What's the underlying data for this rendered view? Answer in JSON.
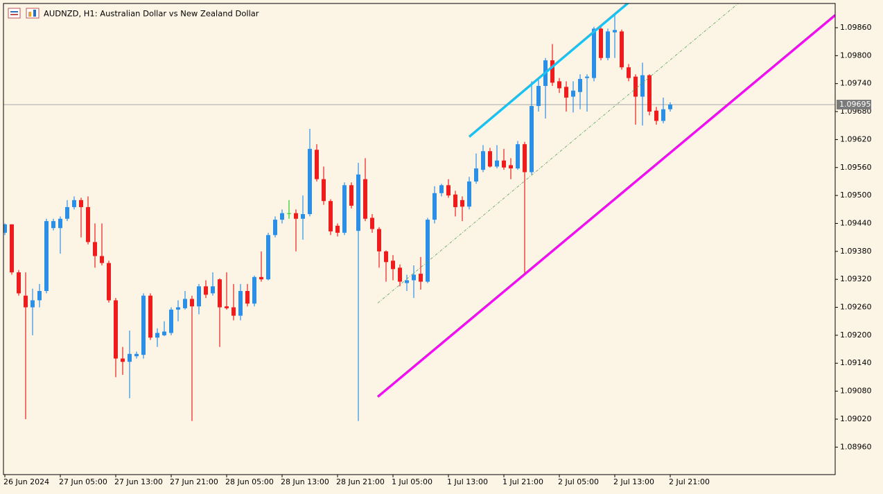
{
  "chart_data": {
    "type": "candlestick",
    "title": "AUDNZD, H1:  Australian Dollar vs New Zealand Dollar",
    "background": "#fcf5e6",
    "up_color": "#2c8fe6",
    "down_color": "#ee1c1c",
    "doji_color": "#22cc22",
    "categories": [
      "26 Jun 2024",
      null,
      null,
      null,
      null,
      null,
      null,
      null,
      "27 Jun 05:00",
      null,
      null,
      null,
      null,
      null,
      null,
      null,
      "27 Jun 13:00",
      null,
      null,
      null,
      null,
      null,
      null,
      null,
      "27 Jun 21:00",
      null,
      null,
      null,
      null,
      null,
      null,
      null,
      "28 Jun 05:00",
      null,
      null,
      null,
      null,
      null,
      null,
      null,
      "28 Jun 13:00",
      null,
      null,
      null,
      null,
      null,
      null,
      null,
      "28 Jun 21:00",
      null,
      null,
      null,
      null,
      null,
      null,
      null,
      "1 Jul 05:00",
      null,
      null,
      null,
      null,
      null,
      null,
      null,
      "1 Jul 13:00",
      null,
      null,
      null,
      null,
      null,
      null,
      null,
      "1 Jul 21:00",
      null,
      null,
      null,
      null,
      null,
      null,
      null,
      "2 Jul 05:00",
      null,
      null,
      null,
      null,
      null,
      null,
      null,
      "2 Jul 13:00",
      null,
      null,
      null,
      null,
      null,
      null,
      null,
      "2 Jul 21:00"
    ],
    "open": [
      1.0942,
      1.09438,
      1.09335,
      1.09285,
      1.0926,
      1.09275,
      1.09295,
      1.0943,
      1.0943,
      1.0945,
      1.09475,
      1.0949,
      1.09475,
      1.094,
      1.0937,
      1.09355,
      1.09275,
      1.0915,
      1.09143,
      1.09155,
      1.09158,
      1.09285,
      1.09195,
      1.092,
      1.09205,
      1.09255,
      1.09258,
      1.09278,
      1.09262,
      1.09305,
      1.0929,
      1.0932,
      1.09262,
      1.0926,
      1.09242,
      1.09295,
      1.09268,
      1.09325,
      1.0932,
      1.09415,
      1.09448,
      1.09462,
      1.09462,
      1.0945,
      1.0946,
      1.09598,
      1.09535,
      1.09488,
      1.09435,
      1.0942,
      1.09522,
      1.09424,
      1.09535,
      1.09452,
      1.09428,
      1.0938,
      1.0936,
      1.09345,
      1.09312,
      1.09318,
      1.09332,
      1.09315,
      1.09448,
      1.09505,
      1.09522,
      1.09502,
      1.0949,
      1.09476,
      1.0953,
      1.09555,
      1.09595,
      1.09562,
      1.09575,
      1.09565,
      1.09558,
      1.0961,
      1.0955,
      1.09692,
      1.09735,
      1.0979,
      1.09745,
      1.09733,
      1.09712,
      1.09722,
      1.09752,
      1.09752,
      1.09858,
      1.09795,
      1.0985,
      1.09852,
      1.09775,
      1.09755,
      1.09712,
      1.09758,
      1.09682,
      1.0966,
      1.09685
    ],
    "high": [
      1.0944,
      1.09438,
      1.0934,
      1.09335,
      1.093,
      1.0931,
      1.0945,
      1.0945,
      1.09455,
      1.0949,
      1.09498,
      1.09495,
      1.09498,
      1.0944,
      1.0944,
      1.0936,
      1.0928,
      1.09175,
      1.0921,
      1.09165,
      1.0929,
      1.0929,
      1.09215,
      1.0923,
      1.0926,
      1.09275,
      1.09295,
      1.09285,
      1.0931,
      1.09318,
      1.09335,
      1.09322,
      1.09335,
      1.0931,
      1.0931,
      1.0931,
      1.09328,
      1.0938,
      1.0942,
      1.09455,
      1.0947,
      1.0949,
      1.0947,
      1.095,
      1.09643,
      1.0961,
      1.09562,
      1.09492,
      1.0944,
      1.09528,
      1.09528,
      1.0957,
      1.0958,
      1.0946,
      1.09432,
      1.09382,
      1.09372,
      1.09352,
      1.0933,
      1.0935,
      1.09368,
      1.09452,
      1.0952,
      1.09525,
      1.09535,
      1.0951,
      1.09498,
      1.0954,
      1.0959,
      1.09608,
      1.09602,
      1.09608,
      1.096,
      1.0958,
      1.09617,
      1.09615,
      1.09745,
      1.0975,
      1.09795,
      1.09825,
      1.09752,
      1.09745,
      1.09745,
      1.0976,
      1.0976,
      1.09862,
      1.09865,
      1.09858,
      1.09888,
      1.09856,
      1.09782,
      1.0976,
      1.09785,
      1.0976,
      1.0969,
      1.0971,
      1.097
    ],
    "low": [
      1.09415,
      1.0933,
      1.09285,
      1.0902,
      1.092,
      1.0926,
      1.0929,
      1.09425,
      1.09375,
      1.09445,
      1.0947,
      1.0941,
      1.09395,
      1.09345,
      1.0935,
      1.0927,
      1.0911,
      1.09115,
      1.09065,
      1.0915,
      1.0915,
      1.0919,
      1.09175,
      1.09198,
      1.092,
      1.0923,
      1.09255,
      1.09016,
      1.09245,
      1.0928,
      1.09285,
      1.09175,
      1.09255,
      1.09232,
      1.09232,
      1.09262,
      1.09262,
      1.09315,
      1.09318,
      1.0941,
      1.0944,
      1.0945,
      1.0938,
      1.09405,
      1.09455,
      1.0953,
      1.0948,
      1.09415,
      1.09412,
      1.09415,
      1.09472,
      1.09016,
      1.09445,
      1.0942,
      1.09345,
      1.09315,
      1.09318,
      1.09305,
      1.09295,
      1.0928,
      1.09298,
      1.09312,
      1.0944,
      1.09498,
      1.09495,
      1.09455,
      1.09445,
      1.0947,
      1.09525,
      1.0955,
      1.0956,
      1.09558,
      1.09555,
      1.09535,
      1.09555,
      1.0933,
      1.09545,
      1.0968,
      1.09665,
      1.09735,
      1.0972,
      1.0968,
      1.09678,
      1.09685,
      1.0968,
      1.09745,
      1.0979,
      1.0979,
      1.09795,
      1.0977,
      1.09745,
      1.09652,
      1.0965,
      1.09672,
      1.09652,
      1.09655,
      1.0968
    ],
    "close": [
      1.09438,
      1.09335,
      1.0929,
      1.0926,
      1.09275,
      1.09295,
      1.09445,
      1.09445,
      1.0945,
      1.09475,
      1.0949,
      1.09475,
      1.094,
      1.0937,
      1.09355,
      1.09275,
      1.0915,
      1.09143,
      1.0916,
      1.0916,
      1.09285,
      1.09195,
      1.09205,
      1.09208,
      1.09255,
      1.0926,
      1.09278,
      1.09262,
      1.09305,
      1.09287,
      1.09305,
      1.0926,
      1.09258,
      1.09242,
      1.09295,
      1.09268,
      1.09325,
      1.0932,
      1.09415,
      1.09448,
      1.09462,
      1.09462,
      1.0945,
      1.0946,
      1.096,
      1.09535,
      1.09488,
      1.09423,
      1.0942,
      1.09522,
      1.09478,
      1.09545,
      1.0945,
      1.09428,
      1.0938,
      1.09357,
      1.09342,
      1.09315,
      1.09318,
      1.0933,
      1.09315,
      1.09448,
      1.09505,
      1.09522,
      1.095,
      1.09475,
      1.09476,
      1.0953,
      1.09558,
      1.09595,
      1.09562,
      1.09575,
      1.0956,
      1.09558,
      1.0961,
      1.0955,
      1.09692,
      1.09735,
      1.0979,
      1.09742,
      1.0973,
      1.0971,
      1.09725,
      1.0975,
      1.09755,
      1.09858,
      1.09795,
      1.09852,
      1.09855,
      1.09775,
      1.09752,
      1.09712,
      1.09758,
      1.0968,
      1.0966,
      1.09685,
      1.09695
    ],
    "ylim": [
      1.08901,
      1.09912
    ],
    "yticks": [
      {
        "value": 1.0896,
        "label": "1.08960"
      },
      {
        "value": 1.0902,
        "label": "1.09020"
      },
      {
        "value": 1.0908,
        "label": "1.09080"
      },
      {
        "value": 1.0914,
        "label": "1.09140"
      },
      {
        "value": 1.092,
        "label": "1.09200"
      },
      {
        "value": 1.0926,
        "label": "1.09260"
      },
      {
        "value": 1.0932,
        "label": "1.09320"
      },
      {
        "value": 1.0938,
        "label": "1.09380"
      },
      {
        "value": 1.0944,
        "label": "1.09440"
      },
      {
        "value": 1.095,
        "label": "1.09500"
      },
      {
        "value": 1.0956,
        "label": "1.09560"
      },
      {
        "value": 1.0962,
        "label": "1.09620"
      },
      {
        "value": 1.0968,
        "label": "1.09680"
      },
      {
        "value": 1.0974,
        "label": "1.09740"
      },
      {
        "value": 1.098,
        "label": "1.09800"
      },
      {
        "value": 1.0986,
        "label": "1.09860"
      }
    ],
    "price_line": 1.09695,
    "price_line_color": "#a8a8a8",
    "trendlines": [
      {
        "color": "#1ec0f0",
        "x": [
          67,
          90
        ],
        "y": [
          1.09626,
          1.09914
        ],
        "width": 3.5
      },
      {
        "color": "#ee10ee",
        "x": [
          53.8,
          119.8
        ],
        "y": [
          1.09068,
          1.09887
        ],
        "width": 3.5
      },
      {
        "color": "#5aa05a",
        "x": [
          53.8,
          105.8
        ],
        "y": [
          1.09269,
          1.09912
        ],
        "width": 0.8,
        "dash": true
      }
    ]
  }
}
